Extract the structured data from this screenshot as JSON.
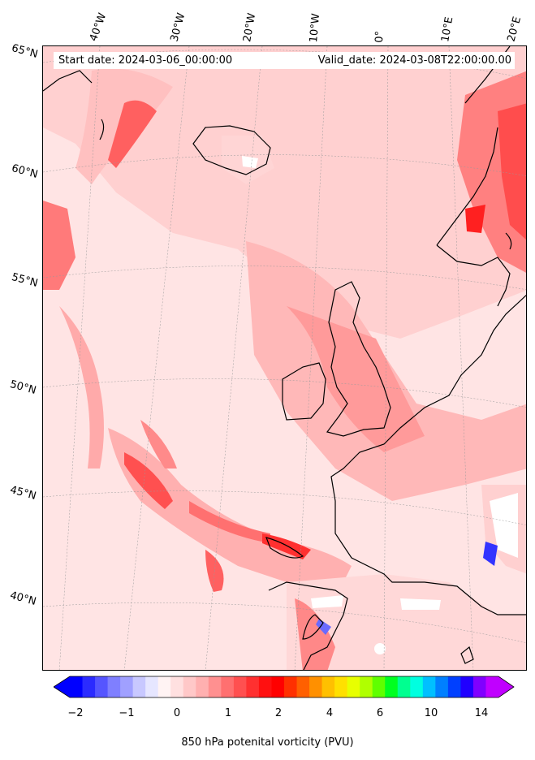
{
  "header": {
    "start_date": "Start date: 2024-03-06_00:00:00",
    "valid_date": "Valid_date: 2024-03-08T22:00:00.00"
  },
  "graticule": {
    "longitudes": [
      "40°W",
      "30°W",
      "20°W",
      "10°W",
      "0°",
      "10°E",
      "20°E"
    ],
    "latitudes": [
      "65°N",
      "60°N",
      "55°N",
      "50°N",
      "45°N",
      "40°N"
    ]
  },
  "colorbar": {
    "label": "850 hPa potenital vorticity (PVU)",
    "ticks": [
      "−2",
      "−1",
      "0",
      "1",
      "2",
      "4",
      "6",
      "10",
      "14"
    ],
    "colors": [
      "#0000ff",
      "#2b2bff",
      "#5555ff",
      "#7f7fff",
      "#a0a0ff",
      "#c8c8ff",
      "#e6e6ff",
      "#fff3f3",
      "#ffe0e0",
      "#ffc8c8",
      "#ffb0b0",
      "#ff9090",
      "#ff7070",
      "#ff5050",
      "#ff3030",
      "#ff1010",
      "#ff0000",
      "#ff3000",
      "#ff6000",
      "#ff9000",
      "#ffc000",
      "#ffe000",
      "#e8ff00",
      "#b0ff00",
      "#60ff00",
      "#00ff20",
      "#00ff90",
      "#00ffe0",
      "#00c0ff",
      "#0080ff",
      "#0040ff",
      "#2000ff",
      "#8000ff",
      "#c000ff"
    ]
  },
  "colors": {
    "background": "#ffe6e6",
    "coastline": "#000000",
    "high_pv": "#ff3030"
  }
}
